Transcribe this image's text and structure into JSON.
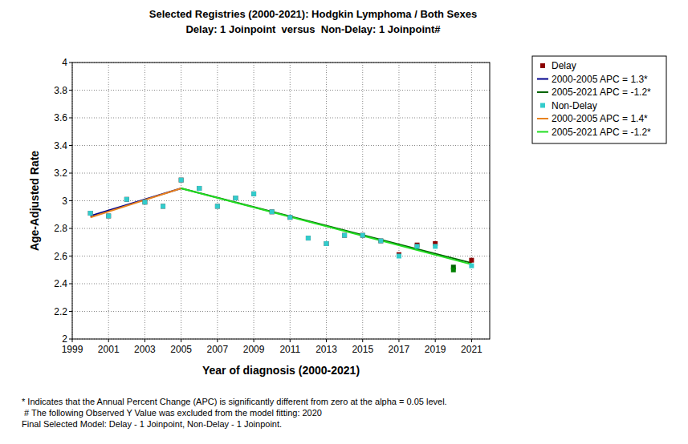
{
  "chart_data": {
    "type": "scatter",
    "title": "Selected Registries (2000-2021): Hodgkin Lymphoma / Both Sexes",
    "subtitle": "Delay: 1 Joinpoint  versus  Non-Delay: 1 Joinpoint#",
    "x_label": "Year of diagnosis (2000-2021)",
    "y_label": "Age-Adjusted Rate",
    "annotations": [
      "* Indicates that the Annual Percent Change (APC) is significantly different from zero at the alpha = 0.05 level.",
      "# The following Observed Y Value was excluded from the model fitting: 2020",
      "Final Selected Model: Delay - 1 Joinpoint, Non-Delay - 1 Joinpoint."
    ],
    "xlim": [
      1999,
      2022
    ],
    "xticks": [
      1999,
      2001,
      2003,
      2005,
      2007,
      2009,
      2011,
      2013,
      2015,
      2017,
      2019,
      2021
    ],
    "ylim": [
      2,
      4
    ],
    "yticks": [
      2,
      2.2,
      2.4,
      2.6,
      2.8,
      3,
      3.2,
      3.4,
      3.6,
      3.8,
      4
    ],
    "grid": true,
    "legend": "outside-top-right",
    "series": [
      {
        "name": "Delay",
        "type": "scatter",
        "marker": "square",
        "color": "#8b0000",
        "x": [
          2000,
          2001,
          2002,
          2003,
          2004,
          2005,
          2006,
          2007,
          2008,
          2009,
          2010,
          2011,
          2012,
          2013,
          2014,
          2015,
          2016,
          2017,
          2018,
          2019,
          2020,
          2021
        ],
        "values": [
          2.91,
          2.89,
          3.01,
          2.99,
          2.96,
          3.15,
          3.09,
          2.96,
          3.02,
          3.05,
          2.92,
          2.88,
          2.73,
          2.69,
          2.75,
          2.75,
          2.71,
          2.61,
          2.68,
          2.69,
          2.52,
          2.57
        ],
        "colors": [
          "#8b0000",
          "#8b0000",
          "#8b0000",
          "#8b0000",
          "#8b0000",
          "#8b0000",
          "#8b0000",
          "#8b0000",
          "#8b0000",
          "#8b0000",
          "#8b0000",
          "#8b0000",
          "#8b0000",
          "#8b0000",
          "#8b0000",
          "#8b0000",
          "#8b0000",
          "#8b0000",
          "#8b0000",
          "#8b0000",
          "#006400",
          "#8b0000"
        ]
      },
      {
        "name": "2000-2005 APC = 1.3*",
        "type": "line",
        "line_style": "solid",
        "color": "#00008b",
        "x": [
          2000,
          2005
        ],
        "values": [
          2.89,
          3.09
        ]
      },
      {
        "name": "2005-2021 APC = -1.2*",
        "type": "line",
        "line_style": "solid",
        "color": "#006400",
        "x": [
          2005,
          2021
        ],
        "values": [
          3.09,
          2.55
        ]
      },
      {
        "name": "Non-Delay",
        "type": "scatter",
        "marker": "square",
        "color": "#33cccc",
        "x": [
          2000,
          2001,
          2002,
          2003,
          2004,
          2005,
          2006,
          2007,
          2008,
          2009,
          2010,
          2011,
          2012,
          2013,
          2014,
          2015,
          2016,
          2017,
          2018,
          2019,
          2020,
          2021
        ],
        "values": [
          2.91,
          2.89,
          3.01,
          2.99,
          2.96,
          3.15,
          3.09,
          2.96,
          3.02,
          3.05,
          2.92,
          2.88,
          2.73,
          2.69,
          2.75,
          2.75,
          2.71,
          2.6,
          2.67,
          2.67,
          2.5,
          2.53
        ],
        "colors": [
          "#33cccc",
          "#33cccc",
          "#33cccc",
          "#33cccc",
          "#33cccc",
          "#33cccc",
          "#33cccc",
          "#33cccc",
          "#33cccc",
          "#33cccc",
          "#33cccc",
          "#33cccc",
          "#33cccc",
          "#33cccc",
          "#33cccc",
          "#33cccc",
          "#33cccc",
          "#33cccc",
          "#33cccc",
          "#33cccc",
          "#008000",
          "#33cccc"
        ]
      },
      {
        "name": "2000-2005 APC = 1.4*",
        "type": "line",
        "line_style": "solid",
        "color": "#e8821e",
        "x": [
          2000,
          2005
        ],
        "values": [
          2.88,
          3.09
        ]
      },
      {
        "name": "2005-2021 APC = -1.2*",
        "type": "line",
        "line_style": "solid",
        "color": "#22dd22",
        "x": [
          2005,
          2021
        ],
        "values": [
          3.09,
          2.54
        ]
      }
    ]
  }
}
